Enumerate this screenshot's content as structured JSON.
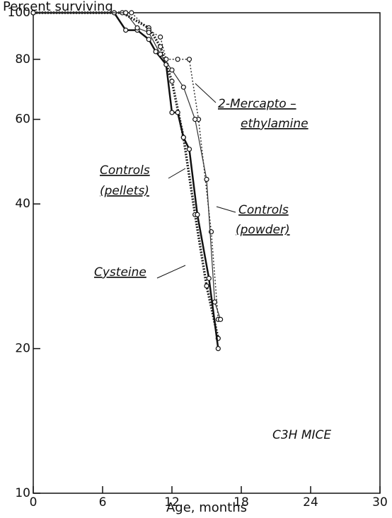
{
  "chart_data": {
    "type": "line",
    "title": "Percent surviving",
    "x_label": "Age, months",
    "xlim": [
      0,
      30
    ],
    "xticks": [
      0,
      6,
      12,
      18,
      24,
      30
    ],
    "ylim": [
      10,
      100
    ],
    "yticks": [
      10,
      20,
      40,
      60,
      80,
      100
    ],
    "log_y": true,
    "series": [
      {
        "color": "#222",
        "style": "dotted",
        "width": 3.5,
        "x": [
          0,
          7.7,
          10,
          11,
          12,
          13,
          14,
          15,
          16
        ],
        "values": [
          100,
          100,
          93,
          85,
          72,
          55,
          38,
          27,
          21
        ]
      },
      {
        "color": "#111",
        "style": "solid",
        "width": 2.5,
        "x": [
          0,
          7,
          8,
          9,
          10,
          10.6,
          11.5,
          12,
          12.5,
          13,
          13.5,
          14.2,
          15.2,
          16
        ],
        "values": [
          100,
          100,
          92,
          92,
          88,
          83,
          78,
          62,
          62,
          55,
          52,
          38,
          28,
          20
        ]
      },
      {
        "color": "#333",
        "style": "dotted",
        "width": 1.5,
        "x": [
          0,
          8,
          8.5,
          10,
          11,
          11.5,
          12.5,
          13.5,
          14.3,
          15.4,
          16
        ],
        "values": [
          100,
          100,
          100,
          92,
          89,
          80,
          80,
          80,
          60,
          35,
          23
        ]
      },
      {
        "color": "#333",
        "style": "solid",
        "width": 1.2,
        "x": [
          0,
          8,
          9,
          10,
          11,
          12,
          13,
          14,
          15,
          15.7,
          16.2
        ],
        "values": [
          100,
          100,
          93,
          91,
          82,
          76,
          70,
          60,
          45,
          25,
          23
        ]
      }
    ],
    "annotations": [
      {
        "lines": [
          "2-Mercapto –",
          "ethylamine"
        ]
      },
      {
        "lines": [
          "Controls",
          "(pellets)"
        ]
      },
      {
        "lines": [
          "Controls",
          "(powder)"
        ]
      },
      {
        "lines": [
          "Cysteine"
        ]
      },
      {
        "lines": [
          "C3H MICE"
        ]
      }
    ]
  }
}
